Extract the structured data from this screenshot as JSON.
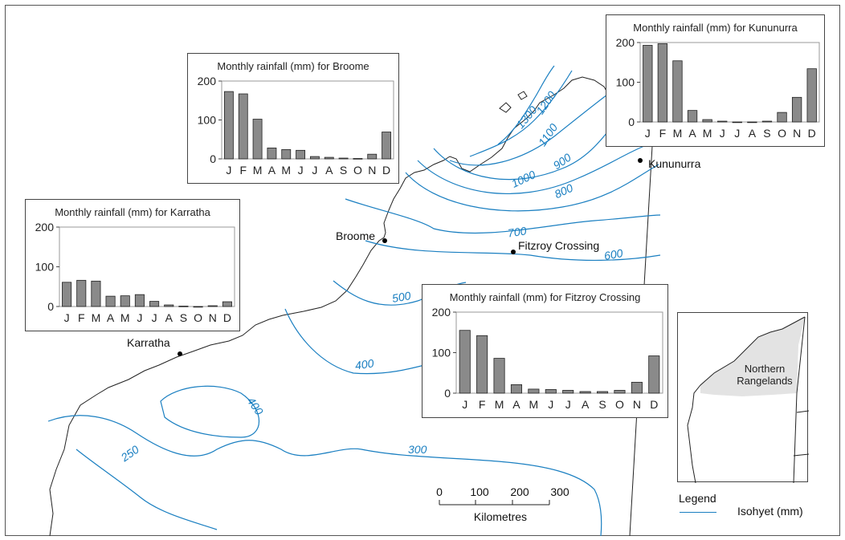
{
  "chart_data": [
    {
      "type": "bar",
      "title": "Monthly rainfall (mm) for Broome",
      "categories": [
        "J",
        "F",
        "M",
        "A",
        "M",
        "J",
        "J",
        "A",
        "S",
        "O",
        "N",
        "D"
      ],
      "values": [
        173,
        167,
        102,
        28,
        24,
        22,
        6,
        4,
        2,
        1,
        12,
        69
      ],
      "ylim": [
        0,
        200
      ],
      "yticks": [
        0,
        100,
        200
      ],
      "grid": false
    },
    {
      "type": "bar",
      "title": "Monthly rainfall (mm) for Karratha",
      "categories": [
        "J",
        "F",
        "M",
        "A",
        "M",
        "J",
        "J",
        "A",
        "S",
        "O",
        "N",
        "D"
      ],
      "values": [
        61,
        66,
        64,
        26,
        27,
        30,
        13,
        4,
        1,
        0,
        2,
        12
      ],
      "ylim": [
        0,
        200
      ],
      "yticks": [
        0,
        100,
        200
      ],
      "grid": false
    },
    {
      "type": "bar",
      "title": "Monthly rainfall (mm) for Kununurra",
      "categories": [
        "J",
        "F",
        "M",
        "A",
        "M",
        "J",
        "J",
        "A",
        "S",
        "O",
        "N",
        "D"
      ],
      "values": [
        193,
        197,
        154,
        29,
        6,
        2,
        0,
        0,
        2,
        24,
        62,
        134
      ],
      "ylim": [
        0,
        200
      ],
      "yticks": [
        0,
        100,
        200
      ],
      "grid": false
    },
    {
      "type": "bar",
      "title": "Monthly rainfall (mm) for Fitzroy Crossing",
      "categories": [
        "J",
        "F",
        "M",
        "A",
        "M",
        "J",
        "J",
        "A",
        "S",
        "O",
        "N",
        "D"
      ],
      "values": [
        155,
        142,
        86,
        21,
        10,
        9,
        7,
        4,
        4,
        7,
        27,
        92
      ],
      "ylim": [
        0,
        200
      ],
      "yticks": [
        0,
        100,
        200
      ],
      "grid": false
    }
  ],
  "map": {
    "places": {
      "broome": "Broome",
      "karratha": "Karratha",
      "kununurra": "Kununurra",
      "fitzroy": "Fitzroy Crossing"
    },
    "isohyets": [
      "1300",
      "1200",
      "1100",
      "1000",
      "900",
      "800",
      "700",
      "600",
      "500",
      "400",
      "400",
      "300",
      "250"
    ],
    "inset_label": "Northern Rangelands",
    "legend_title": "Legend",
    "legend_entry": "Isohyet (mm)",
    "scale_ticks": [
      "0",
      "100",
      "200",
      "300"
    ],
    "scale_unit": "Kilometres",
    "colors": {
      "isohyet": "#1a7fc1",
      "bar": "#8a8a8a",
      "region_fill": "#e3e3e3"
    }
  }
}
